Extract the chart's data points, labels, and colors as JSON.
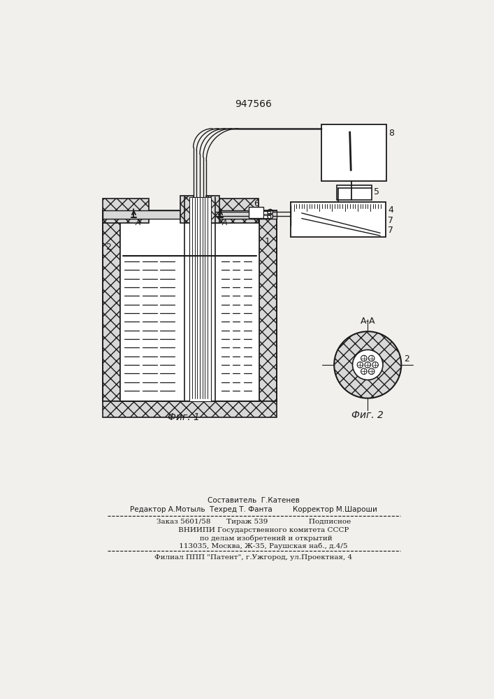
{
  "patent_number": "947566",
  "fig1_label": "Фиг. 1",
  "fig2_label": "Фиг. 2",
  "aa_label": "А-А",
  "background_color": "#f2f0ed",
  "line_color": "#1a1a1a",
  "footer_lines": [
    "Составитель  Г.Катенев",
    "Редактор А.Мотыль  Техред Т. Фанта         Корректор М.Шароши",
    "Заказ 5601/58       Тираж 539                  Подписное",
    "         ВНИИПИ Государственного комитета СССР",
    "           по делам изобретений и открытий",
    "         113035, Москва, Ж-35, Раушская наб., д.4/5",
    "Филиал ППП \"Патент\", г.Ужгород, ул.Проектная, 4"
  ]
}
